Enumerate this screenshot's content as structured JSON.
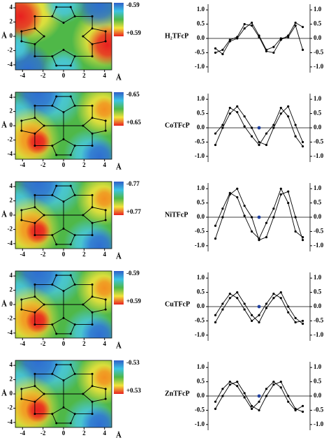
{
  "chart_data": [
    {
      "type": "heatmap",
      "title": "H₂TFcP",
      "xlabel": "Å",
      "ylabel": "Å",
      "xlim": [
        -4.7,
        4.7
      ],
      "ylim": [
        -4.7,
        4.7
      ],
      "xticks": [
        -4,
        -2,
        0,
        2,
        4
      ],
      "yticks": [
        -4,
        -2,
        0,
        2,
        4
      ],
      "clim": [
        -0.59,
        {
          "value": 0.59,
          "label": "+0.59"
        }
      ]
    },
    {
      "type": "line",
      "x": [
        1,
        2,
        3,
        4,
        5,
        6,
        7,
        8,
        9,
        10,
        11,
        12,
        13
      ],
      "xlim": [
        0,
        14
      ],
      "ylim": [
        -1.2,
        1.2
      ],
      "yticks": [
        {
          "value": -1,
          "label": "-1.0"
        },
        -0.5,
        {
          "value": 0,
          "label": "0.0"
        },
        0.5,
        {
          "value": 1,
          "label": "1.0"
        }
      ],
      "y2lim": [
        -1.2,
        1.2
      ],
      "y2ticks": [
        {
          "value": -1,
          "label": "-1.0"
        },
        -0.5,
        {
          "value": 0,
          "label": "0.0"
        },
        0.5,
        {
          "value": 1,
          "label": "1.0"
        }
      ],
      "zero_line": true,
      "series": [
        {
          "color": "#000000",
          "values": [
            -0.5,
            -0.4,
            -0.05,
            0.05,
            0.5,
            0.45,
            0.05,
            -0.45,
            -0.5,
            -0.05,
            0.1,
            0.55,
            0.4
          ]
        },
        {
          "color": "#000000",
          "values": [
            -0.35,
            -0.55,
            -0.1,
            0.0,
            0.35,
            0.55,
            0.1,
            -0.4,
            -0.3,
            0.0,
            0.05,
            0.45,
            -0.4
          ]
        }
      ],
      "points": []
    },
    {
      "type": "heatmap",
      "title": "CoTFcP",
      "xlabel": "Å",
      "ylabel": "Å",
      "xlim": [
        -4.7,
        4.7
      ],
      "ylim": [
        -4.7,
        4.7
      ],
      "xticks": [
        -4,
        -2,
        0,
        2,
        4
      ],
      "yticks": [
        -4,
        -2,
        0,
        2,
        4
      ],
      "clim": [
        -0.65,
        {
          "value": 0.65,
          "label": "+0.65"
        }
      ]
    },
    {
      "type": "line",
      "x": [
        1,
        2,
        3,
        4,
        5,
        6,
        7,
        8,
        9,
        10,
        11,
        12,
        13
      ],
      "xlim": [
        0,
        14
      ],
      "ylim": [
        -1.2,
        1.2
      ],
      "yticks": [
        {
          "value": -1,
          "label": "-1.0"
        },
        -0.5,
        {
          "value": 0,
          "label": "0.0"
        },
        0.5,
        {
          "value": 1,
          "label": "1.0"
        }
      ],
      "y2lim": [
        -1.2,
        1.2
      ],
      "y2ticks": [
        {
          "value": -1,
          "label": "-1.0"
        },
        -0.5,
        {
          "value": 0,
          "label": "0.0"
        },
        0.5,
        {
          "value": 1,
          "label": "1.0"
        }
      ],
      "zero_line": true,
      "series": [
        {
          "color": "#000000",
          "values": [
            -0.6,
            0.0,
            0.5,
            0.75,
            0.4,
            0.0,
            -0.5,
            -0.6,
            0.0,
            0.5,
            0.75,
            0.1,
            -0.5
          ]
        },
        {
          "color": "#000000",
          "values": [
            -0.2,
            0.1,
            0.7,
            0.55,
            0.05,
            -0.3,
            -0.6,
            -0.2,
            0.1,
            0.7,
            0.4,
            -0.3,
            -0.65
          ]
        }
      ],
      "points": [
        {
          "x": 7,
          "y": 0,
          "color": "#1f3f9f"
        }
      ]
    },
    {
      "type": "heatmap",
      "title": "NiTFcP",
      "xlabel": "Å",
      "ylabel": "Å",
      "xlim": [
        -4.7,
        4.7
      ],
      "ylim": [
        -4.7,
        4.7
      ],
      "xticks": [
        -4,
        -2,
        0,
        2,
        4
      ],
      "yticks": [
        -4,
        -2,
        0,
        2,
        4
      ],
      "clim": [
        -0.77,
        {
          "value": 0.77,
          "label": "+0.77"
        }
      ]
    },
    {
      "type": "line",
      "x": [
        1,
        2,
        3,
        4,
        5,
        6,
        7,
        8,
        9,
        10,
        11,
        12,
        13
      ],
      "xlim": [
        0,
        14
      ],
      "ylim": [
        -1.2,
        1.2
      ],
      "yticks": [
        {
          "value": -1,
          "label": "-1.0"
        },
        -0.5,
        {
          "value": 0,
          "label": "0.0"
        },
        0.5,
        {
          "value": 1,
          "label": "1.0"
        }
      ],
      "y2lim": [
        -1.2,
        1.2
      ],
      "y2ticks": [
        {
          "value": -1,
          "label": "-1.0"
        },
        -0.5,
        {
          "value": 0,
          "label": "0.0"
        },
        0.5,
        {
          "value": 1,
          "label": "1.0"
        }
      ],
      "zero_line": true,
      "series": [
        {
          "color": "#000000",
          "values": [
            -0.75,
            0.0,
            0.8,
            1.0,
            0.4,
            0.0,
            -0.8,
            -0.7,
            0.0,
            0.8,
            0.9,
            0.0,
            -0.8
          ]
        },
        {
          "color": "#000000",
          "values": [
            -0.3,
            0.3,
            0.85,
            0.7,
            0.05,
            -0.5,
            -0.75,
            -0.2,
            0.3,
            1.0,
            0.5,
            -0.5,
            -0.7
          ]
        }
      ],
      "points": [
        {
          "x": 7,
          "y": 0,
          "color": "#1f3f9f"
        }
      ]
    },
    {
      "type": "heatmap",
      "title": "CuTFcP",
      "xlabel": "Å",
      "ylabel": "Å",
      "xlim": [
        -4.7,
        4.7
      ],
      "ylim": [
        -4.7,
        4.7
      ],
      "xticks": [
        -4,
        -2,
        0,
        2,
        4
      ],
      "yticks": [
        -4,
        -2,
        0,
        2,
        4
      ],
      "clim": [
        -0.59,
        {
          "value": 0.59,
          "label": "+0.59"
        }
      ]
    },
    {
      "type": "line",
      "x": [
        1,
        2,
        3,
        4,
        5,
        6,
        7,
        8,
        9,
        10,
        11,
        12,
        13
      ],
      "xlim": [
        0,
        14
      ],
      "ylim": [
        -1.2,
        1.2
      ],
      "yticks": [
        {
          "value": -1,
          "label": "-1.0"
        },
        -0.5,
        {
          "value": 0,
          "label": "0.0"
        },
        0.5,
        {
          "value": 1,
          "label": "1.0"
        }
      ],
      "y2lim": [
        -1.2,
        1.2
      ],
      "y2ticks": [
        {
          "value": -1,
          "label": "-1.0"
        },
        -0.5,
        {
          "value": 0,
          "label": "0.0"
        },
        0.5,
        {
          "value": 1,
          "label": "1.0"
        }
      ],
      "zero_line": true,
      "series": [
        {
          "color": "#000000",
          "values": [
            -0.55,
            -0.1,
            0.3,
            0.5,
            0.1,
            -0.3,
            -0.55,
            -0.05,
            0.3,
            0.5,
            0.0,
            -0.4,
            -0.6
          ]
        },
        {
          "color": "#000000",
          "values": [
            -0.3,
            0.1,
            0.45,
            0.3,
            -0.1,
            -0.5,
            -0.3,
            0.1,
            0.45,
            0.3,
            -0.2,
            -0.55,
            -0.5
          ]
        }
      ],
      "points": [
        {
          "x": 7,
          "y": 0,
          "color": "#1f3f9f"
        }
      ]
    },
    {
      "type": "heatmap",
      "title": "ZnTFcP",
      "xlabel": "Å",
      "ylabel": "Å",
      "xlim": [
        -4.7,
        4.7
      ],
      "ylim": [
        -4.7,
        4.7
      ],
      "xticks": [
        -4,
        -2,
        0,
        2,
        4
      ],
      "yticks": [
        -4,
        -2,
        0,
        2,
        4
      ],
      "clim": [
        -0.53,
        {
          "value": 0.53,
          "label": "+0.53"
        }
      ]
    },
    {
      "type": "line",
      "x": [
        1,
        2,
        3,
        4,
        5,
        6,
        7,
        8,
        9,
        10,
        11,
        12,
        13
      ],
      "xlim": [
        0,
        14
      ],
      "ylim": [
        -1.2,
        1.2
      ],
      "yticks": [
        {
          "value": -1,
          "label": "-1.0"
        },
        -0.5,
        {
          "value": 0,
          "label": "0.0"
        },
        0.5,
        {
          "value": 1,
          "label": "1.0"
        }
      ],
      "y2lim": [
        -1.2,
        1.2
      ],
      "y2ticks": [
        {
          "value": -1,
          "label": "-1.0"
        },
        -0.5,
        {
          "value": 0,
          "label": "0.0"
        },
        0.5,
        {
          "value": 1,
          "label": "1.0"
        }
      ],
      "zero_line": true,
      "series": [
        {
          "color": "#000000",
          "values": [
            -0.45,
            0.0,
            0.4,
            0.5,
            0.1,
            -0.35,
            -0.5,
            0.0,
            0.4,
            0.5,
            0.0,
            -0.45,
            -0.55
          ]
        },
        {
          "color": "#000000",
          "values": [
            -0.2,
            0.25,
            0.5,
            0.35,
            -0.05,
            -0.45,
            -0.2,
            0.25,
            0.5,
            0.3,
            -0.2,
            -0.5,
            -0.35
          ]
        }
      ],
      "points": [
        {
          "x": 7,
          "y": 0,
          "color": "#1f3f9f"
        }
      ]
    }
  ]
}
